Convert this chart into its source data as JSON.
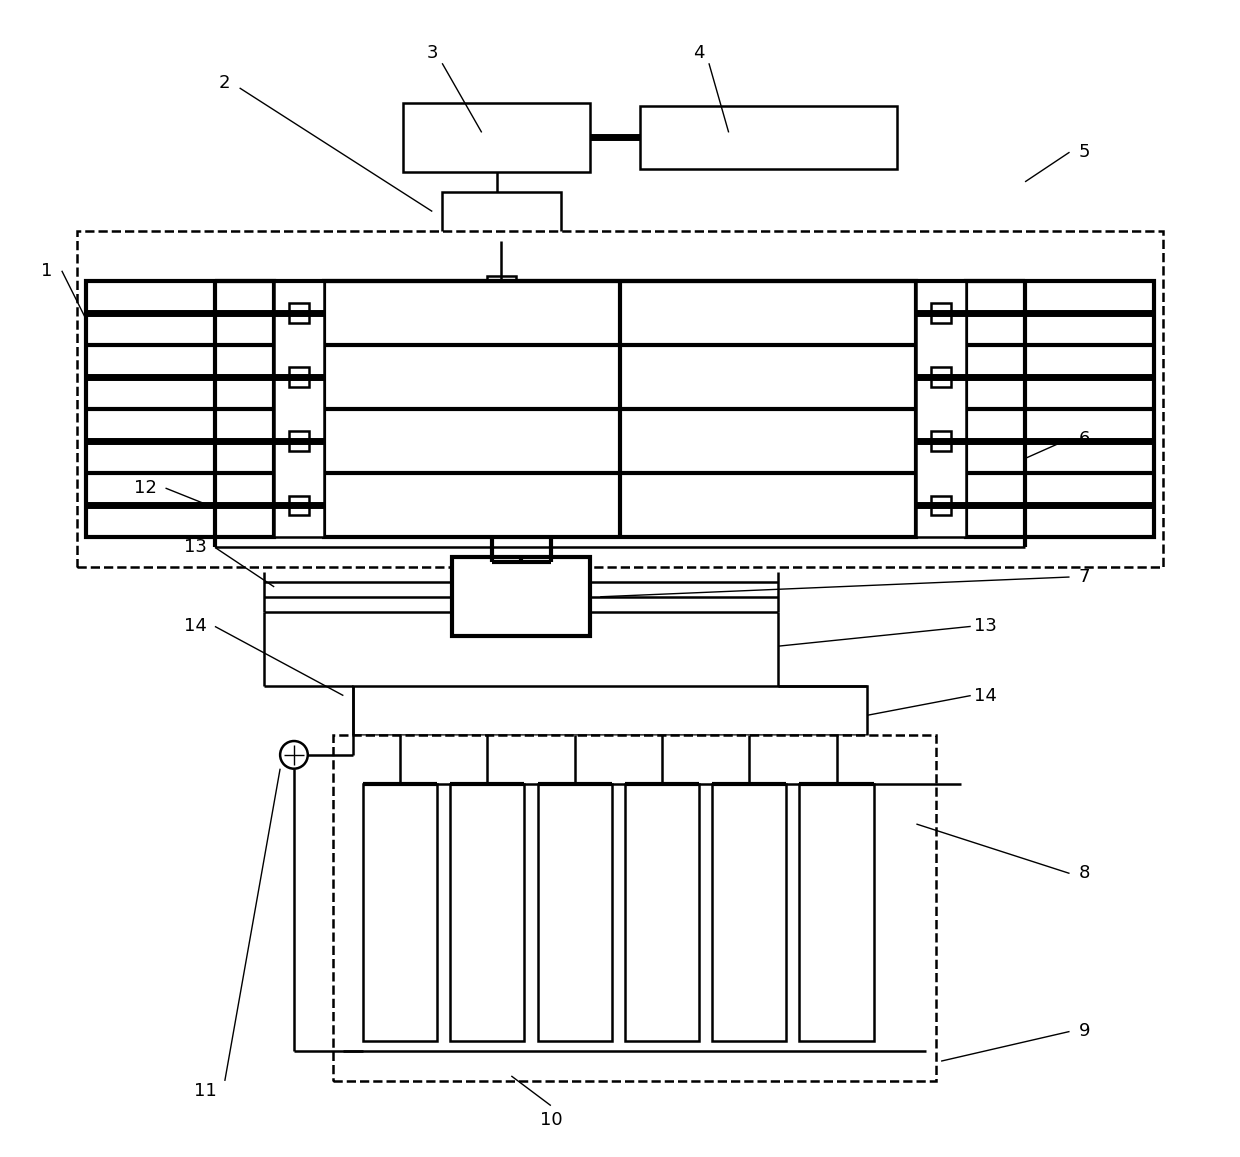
{
  "bg_color": "#ffffff",
  "lc": "#000000",
  "lw_thin": 1.0,
  "lw_med": 1.8,
  "lw_thick": 3.0,
  "lw_vthick": 5.0,
  "font_size": 13,
  "fig_w": 12.4,
  "fig_h": 11.57,
  "dpi": 100
}
